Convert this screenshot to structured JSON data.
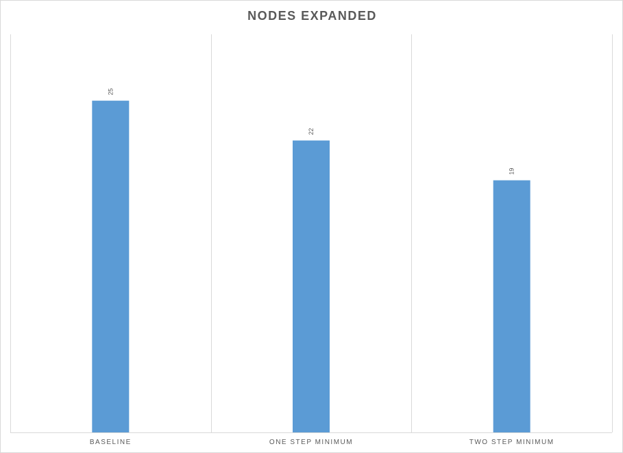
{
  "chart_data": {
    "type": "bar",
    "title": "NODES EXPANDED",
    "categories": [
      "BASELINE",
      "ONE STEP MINIMUM",
      "TWO STEP MINIMUM"
    ],
    "series": [
      {
        "values": [
          25,
          22,
          19
        ]
      }
    ],
    "data_labels": [
      "25",
      "22",
      "19"
    ],
    "ylim": [
      0,
      30
    ],
    "grid": "vertical category separators",
    "legend": "none",
    "bar_color": "#5b9bd5",
    "data_label_orientation": "rotated"
  }
}
